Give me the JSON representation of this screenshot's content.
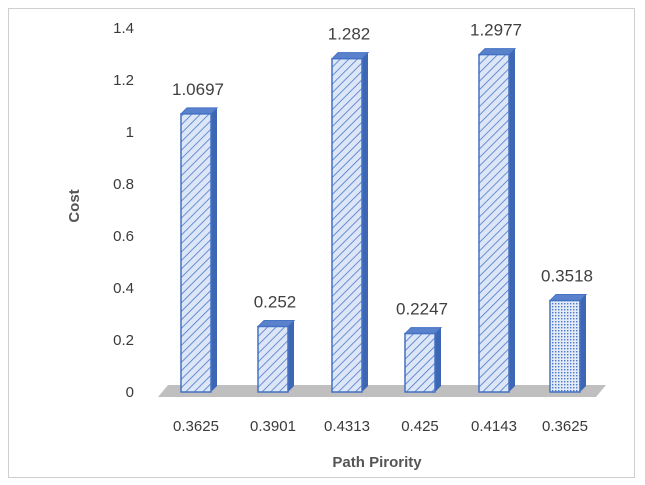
{
  "chart_data": {
    "type": "bar",
    "title": "",
    "xlabel": "Path Pirority",
    "ylabel": "Cost",
    "categories": [
      "0.3625",
      "0.3901",
      "0.4313",
      "0.425",
      "0.4143",
      "0.3625"
    ],
    "values": [
      1.0697,
      0.252,
      1.282,
      0.2247,
      1.2977,
      0.3518
    ],
    "data_labels": [
      "1.0697",
      "0.252",
      "1.282",
      "0.2247",
      "1.2977",
      "0.3518"
    ],
    "yticks": [
      "0",
      "0.2",
      "0.4",
      "0.6",
      "0.8",
      "1",
      "1.2",
      "1.4"
    ],
    "ylim": [
      0,
      1.4
    ],
    "grid": false,
    "legend": "none",
    "bar_fill": "#d6e2f6",
    "bar_stroke": "#4472c4",
    "floor_color": "#bfbfbf"
  }
}
